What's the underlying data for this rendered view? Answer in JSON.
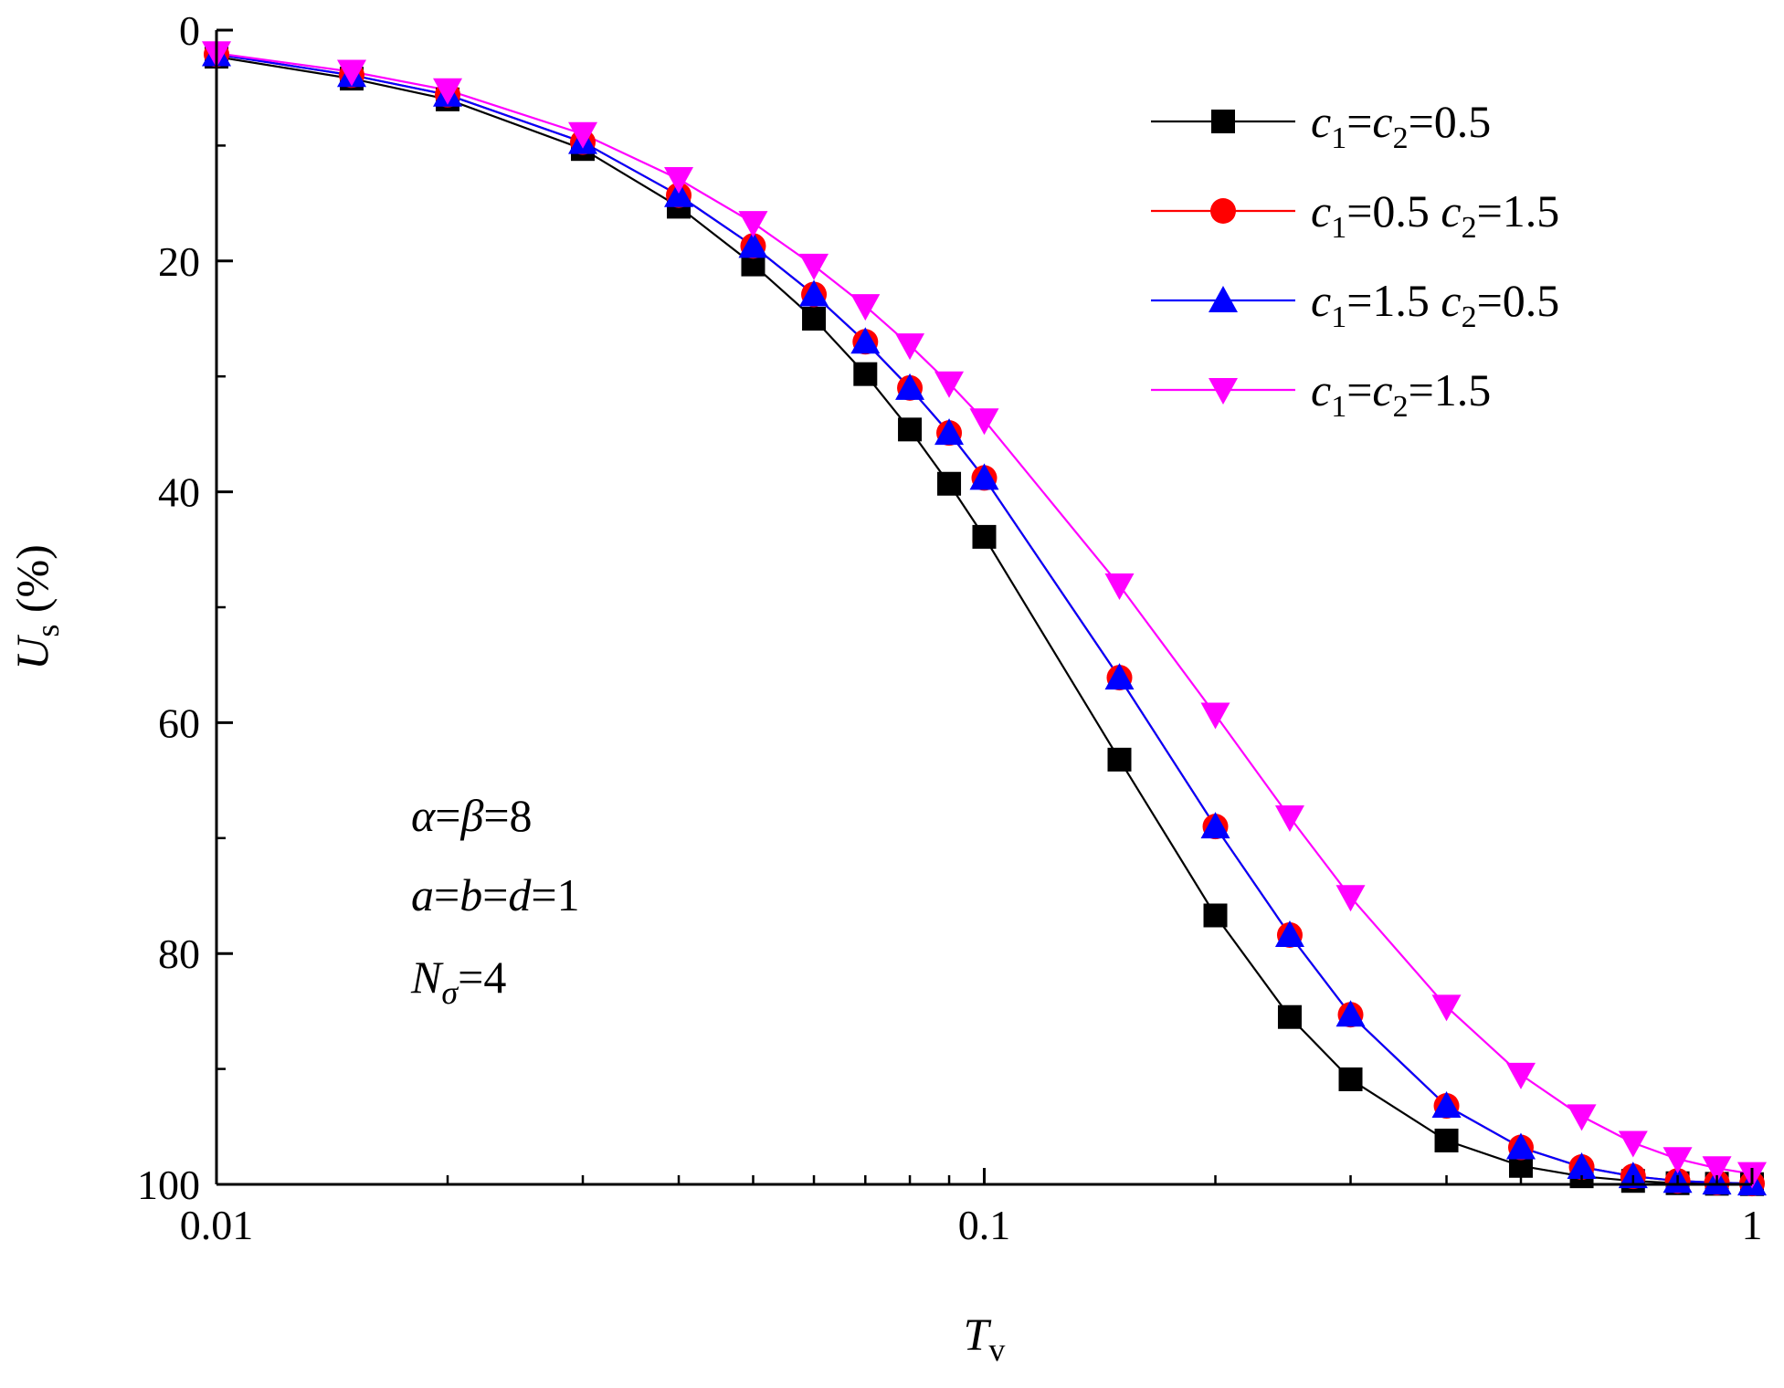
{
  "chart_data": {
    "type": "line",
    "xscale": "log",
    "xlim": [
      0.01,
      1
    ],
    "ylim": [
      0,
      100
    ],
    "y_inverted": true,
    "x_ticks": [
      0.01,
      0.1,
      1
    ],
    "x_tick_labels": [
      "0.01",
      "0.1",
      "1"
    ],
    "y_ticks": [
      0,
      20,
      40,
      60,
      80,
      100
    ],
    "y_tick_labels": [
      "0",
      "20",
      "40",
      "60",
      "80",
      "100"
    ],
    "y_minor_ticks": [
      10,
      30,
      50,
      70,
      90
    ],
    "xlabel": {
      "main": "T",
      "sub": "v"
    },
    "ylabel": {
      "main": "U",
      "sub": "s",
      "suffix": " (%)"
    },
    "legend_position": "top-right",
    "x": [
      0.01,
      0.015,
      0.02,
      0.03,
      0.04,
      0.05,
      0.06,
      0.07,
      0.08,
      0.09,
      0.1,
      0.15,
      0.2,
      0.25,
      0.3,
      0.4,
      0.5,
      0.6,
      0.7,
      0.8,
      0.9,
      1.0
    ],
    "series": [
      {
        "name": "c1=c2=0.5",
        "legend_parts": [
          "c",
          "1",
          "=",
          "c",
          "2",
          "=0.5"
        ],
        "color": "#000000",
        "marker": "square",
        "values": [
          2.3,
          4.2,
          6.0,
          10.3,
          15.3,
          20.3,
          25.0,
          29.8,
          34.6,
          39.3,
          43.9,
          63.2,
          76.7,
          85.5,
          90.9,
          96.2,
          98.4,
          99.3,
          99.7,
          99.9,
          99.95,
          99.98
        ]
      },
      {
        "name": "c1=0.5 c2=1.5",
        "legend_parts": [
          "c",
          "1",
          "=0.5 ",
          "c",
          "2",
          "=1.5"
        ],
        "color": "#ff0000",
        "marker": "circle",
        "values": [
          2.1,
          3.9,
          5.6,
          9.7,
          14.3,
          18.7,
          22.9,
          27.0,
          31.0,
          34.9,
          38.8,
          56.1,
          69.0,
          78.4,
          85.3,
          93.2,
          96.8,
          98.5,
          99.3,
          99.7,
          99.85,
          99.93
        ]
      },
      {
        "name": "c1=1.5 c2=0.5",
        "legend_parts": [
          "c",
          "1",
          "=1.5 ",
          "c",
          "2",
          "=0.5"
        ],
        "color": "#0000ff",
        "marker": "triangle-up",
        "values": [
          2.1,
          3.9,
          5.6,
          9.7,
          14.3,
          18.7,
          22.9,
          27.0,
          31.0,
          34.9,
          38.8,
          56.1,
          69.0,
          78.4,
          85.3,
          93.2,
          96.8,
          98.5,
          99.3,
          99.7,
          99.85,
          99.93
        ]
      },
      {
        "name": "c1=c2=1.5",
        "legend_parts": [
          "c",
          "1",
          "=",
          "c",
          "2",
          "=1.5"
        ],
        "color": "#ff00ff",
        "marker": "triangle-down",
        "values": [
          2.0,
          3.6,
          5.2,
          9.0,
          12.9,
          16.7,
          20.4,
          23.9,
          27.3,
          30.6,
          33.8,
          48.1,
          59.3,
          68.2,
          75.1,
          84.6,
          90.5,
          94.1,
          96.4,
          97.8,
          98.6,
          99.1
        ]
      }
    ],
    "annotations": [
      {
        "parts": [
          {
            "t": "α",
            "i": true
          },
          {
            "t": "=",
            "i": false
          },
          {
            "t": "β",
            "i": true
          },
          {
            "t": "=8",
            "i": false
          }
        ]
      },
      {
        "parts": [
          {
            "t": "a",
            "i": true
          },
          {
            "t": "=",
            "i": false
          },
          {
            "t": "b",
            "i": true
          },
          {
            "t": "=",
            "i": false
          },
          {
            "t": "d",
            "i": true
          },
          {
            "t": "=1",
            "i": false
          }
        ]
      },
      {
        "parts": [
          {
            "t": "N",
            "i": true
          },
          {
            "t": "σ",
            "i": true,
            "sub": true
          },
          {
            "t": "=4",
            "i": false
          }
        ]
      }
    ]
  }
}
